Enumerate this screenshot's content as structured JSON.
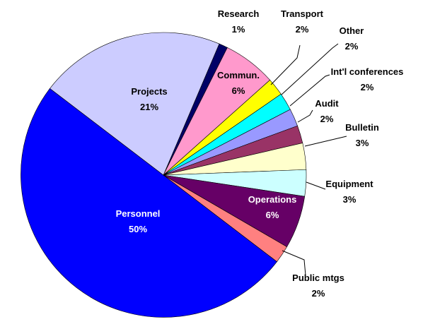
{
  "chart_data": {
    "type": "pie",
    "title": "",
    "slices": [
      {
        "label": "Research",
        "value_text": "1%",
        "value": 1,
        "color": "#000066",
        "text_color": "#000000",
        "label_inside": false
      },
      {
        "label": "Commun.",
        "value_text": "6%",
        "value": 6,
        "color": "#ff99cc",
        "text_color": "#000000",
        "label_inside": true
      },
      {
        "label": "Transport",
        "value_text": "2%",
        "value": 2,
        "color": "#ffff00",
        "text_color": "#000000",
        "label_inside": false
      },
      {
        "label": "Other",
        "value_text": "2%",
        "value": 2,
        "color": "#00ffff",
        "text_color": "#000000",
        "label_inside": false
      },
      {
        "label": "Int'l conferences",
        "value_text": "2%",
        "value": 2,
        "color": "#9999ff",
        "text_color": "#000000",
        "label_inside": false
      },
      {
        "label": "Audit",
        "value_text": "2%",
        "value": 2,
        "color": "#993366",
        "text_color": "#000000",
        "label_inside": false
      },
      {
        "label": "Bulletin",
        "value_text": "3%",
        "value": 3,
        "color": "#ffffcc",
        "text_color": "#000000",
        "label_inside": false
      },
      {
        "label": "Equipment",
        "value_text": "3%",
        "value": 3,
        "color": "#ccffff",
        "text_color": "#000000",
        "label_inside": false
      },
      {
        "label": "Operations",
        "value_text": "6%",
        "value": 6,
        "color": "#660066",
        "text_color": "#ffffff",
        "label_inside": true
      },
      {
        "label": "Public mtgs",
        "value_text": "2%",
        "value": 2,
        "color": "#ff8080",
        "text_color": "#000000",
        "label_inside": false
      },
      {
        "label": "Personnel",
        "value_text": "50%",
        "value": 50,
        "color": "#0000ff",
        "text_color": "#ffffff",
        "label_inside": true
      },
      {
        "label": "Projects",
        "value_text": "21%",
        "value": 21,
        "color": "#ccccff",
        "text_color": "#000000",
        "label_inside": true
      }
    ]
  }
}
